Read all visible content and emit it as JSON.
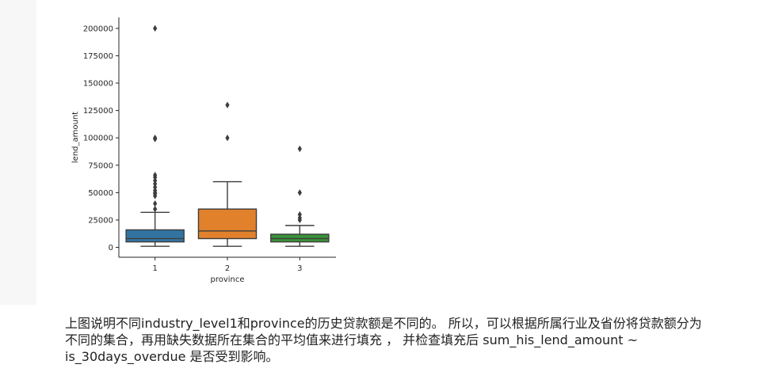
{
  "chart_data": {
    "type": "box",
    "xlabel": "province",
    "ylabel": "lend_amount",
    "categories": [
      "1",
      "2",
      "3"
    ],
    "ylim": [
      -9000,
      210000
    ],
    "yticks": [
      0,
      25000,
      50000,
      75000,
      100000,
      125000,
      150000,
      175000,
      200000
    ],
    "ytick_labels": [
      "0",
      "25000",
      "50000",
      "75000",
      "100000",
      "125000",
      "150000",
      "175000",
      "200000"
    ],
    "grid": false,
    "boxes": [
      {
        "category": "1",
        "color": "#3274a1",
        "whisker_low": 1000,
        "q1": 5000,
        "median": 8000,
        "q3": 16000,
        "whisker_high": 32000,
        "outliers": [
          35000,
          40000,
          47000,
          49000,
          50000,
          52000,
          55000,
          58000,
          61000,
          64000,
          66000,
          99000,
          100000,
          200000
        ]
      },
      {
        "category": "2",
        "color": "#e1812c",
        "whisker_low": 1000,
        "q1": 8000,
        "median": 15000,
        "q3": 35000,
        "whisker_high": 60000,
        "outliers": [
          100000,
          130000
        ]
      },
      {
        "category": "3",
        "color": "#3a923a",
        "whisker_low": 1000,
        "q1": 5000,
        "median": 8000,
        "q3": 12000,
        "whisker_high": 20000,
        "outliers": [
          25000,
          27000,
          30000,
          50000,
          90000
        ]
      }
    ]
  },
  "caption": {
    "line1": "上图说明不同industry_level1和province的历史贷款额是不同的。 所以，可以根据所属行业及省份将贷款额分为",
    "line2": "不同的集合，再用缺失数据所在集合的平均值来进行填充 ， 并检查填充后 sum_his_lend_amount ~",
    "line3": "is_30days_overdue 是否受到影响。"
  }
}
